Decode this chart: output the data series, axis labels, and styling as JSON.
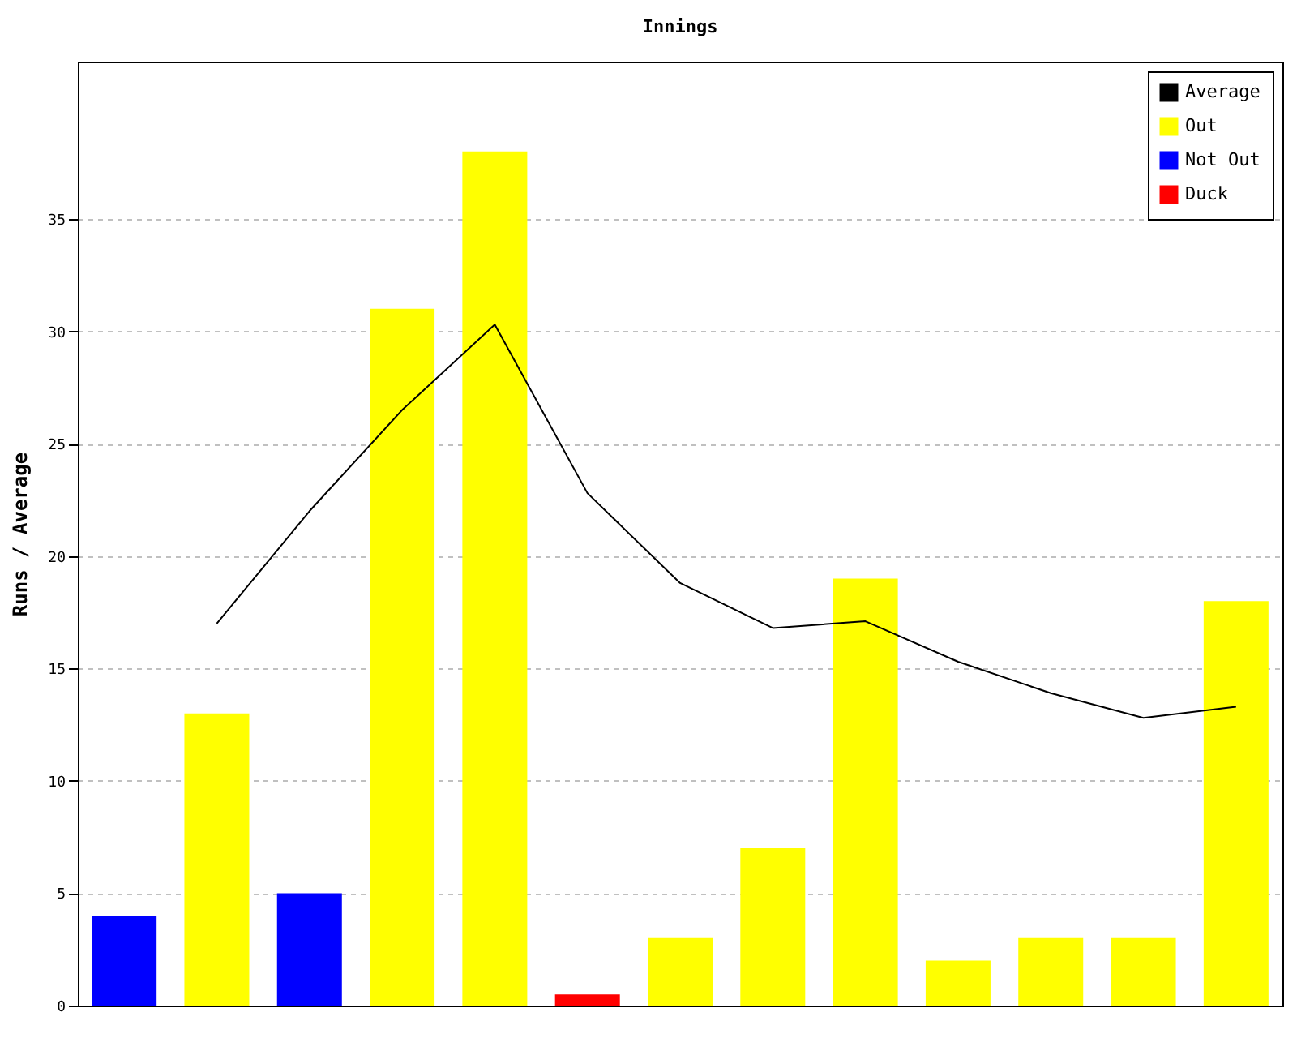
{
  "chart_data": {
    "type": "bar",
    "title": "Innings",
    "ylabel": "Runs / Average",
    "categories": [
      null,
      null,
      null,
      null,
      null,
      null,
      null,
      null,
      null,
      null,
      null,
      null,
      null
    ],
    "series": [
      {
        "name": "Average",
        "type": "line",
        "color": "#000000",
        "values": [
          null,
          17,
          22,
          26.5,
          30.3,
          22.8,
          18.8,
          16.8,
          17.1,
          15.3,
          13.9,
          12.8,
          13.3
        ]
      },
      {
        "name": "Out",
        "color": "#ffff00",
        "values": [
          null,
          13,
          null,
          31,
          38,
          null,
          3,
          7,
          19,
          2,
          3,
          3,
          18
        ]
      },
      {
        "name": "Not Out",
        "color": "#0000ff",
        "values": [
          4,
          null,
          5,
          null,
          null,
          null,
          null,
          null,
          null,
          null,
          null,
          null,
          null
        ]
      },
      {
        "name": "Duck",
        "color": "#ff0000",
        "values": [
          null,
          null,
          null,
          null,
          null,
          0.5,
          null,
          null,
          null,
          null,
          null,
          null,
          null
        ]
      }
    ],
    "ylim": [
      0,
      42
    ],
    "yticks": [
      0,
      5,
      10,
      15,
      20,
      25,
      30,
      35
    ],
    "grid": "y",
    "legend": "top right",
    "tick_labels": "y"
  }
}
